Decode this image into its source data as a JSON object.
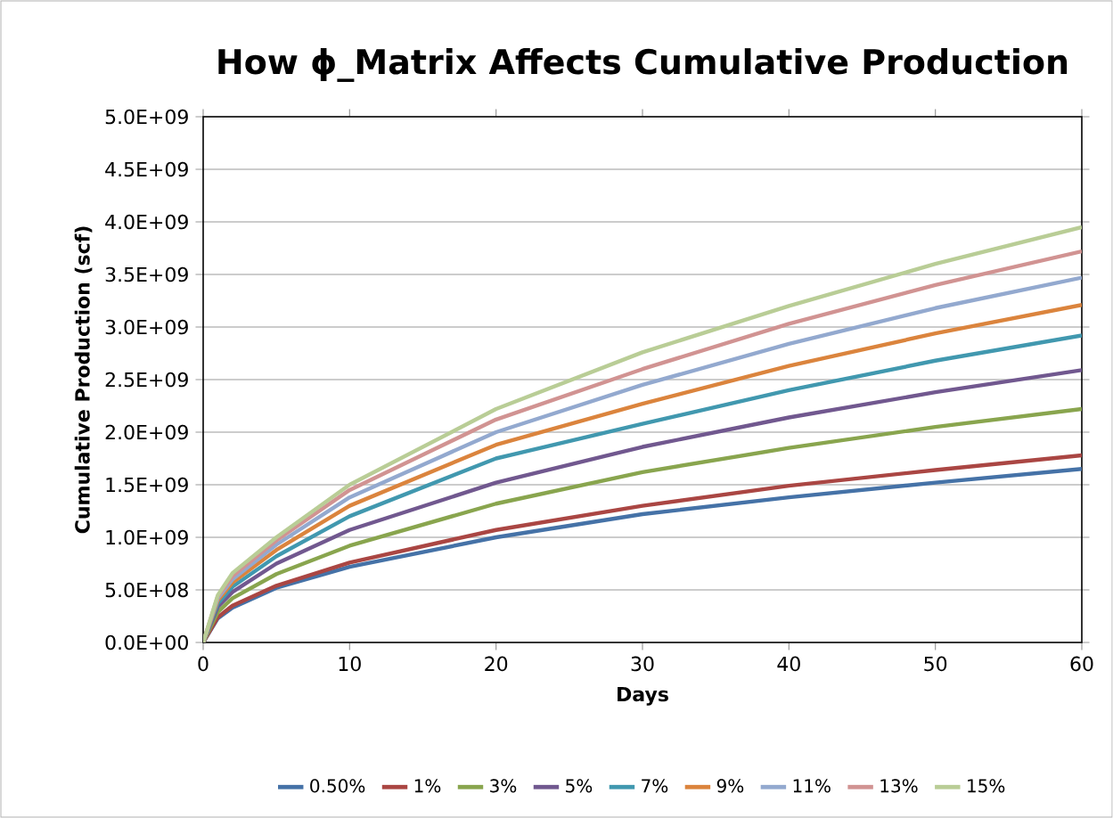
{
  "chart_data": {
    "type": "line",
    "title": "How ϕ_Matrix Affects Cumulative Production",
    "xlabel": "Days",
    "ylabel": "Cumulative Production (scf)",
    "x": [
      0,
      1,
      2,
      5,
      10,
      20,
      30,
      40,
      50,
      60
    ],
    "series": [
      {
        "name": "0.50%",
        "color": "#4572a7",
        "values": [
          0,
          230000000,
          330000000,
          520000000,
          720000000,
          1000000000,
          1220000000,
          1380000000,
          1520000000,
          1650000000
        ]
      },
      {
        "name": "1%",
        "color": "#aa4643",
        "values": [
          0,
          240000000,
          350000000,
          540000000,
          760000000,
          1070000000,
          1300000000,
          1490000000,
          1640000000,
          1780000000
        ]
      },
      {
        "name": "3%",
        "color": "#89a54e",
        "values": [
          0,
          290000000,
          420000000,
          650000000,
          920000000,
          1320000000,
          1620000000,
          1850000000,
          2050000000,
          2220000000
        ]
      },
      {
        "name": "5%",
        "color": "#71588f",
        "values": [
          0,
          340000000,
          480000000,
          750000000,
          1070000000,
          1520000000,
          1860000000,
          2140000000,
          2380000000,
          2590000000
        ]
      },
      {
        "name": "7%",
        "color": "#4198af",
        "values": [
          0,
          370000000,
          530000000,
          820000000,
          1200000000,
          1750000000,
          2080000000,
          2400000000,
          2680000000,
          2920000000
        ]
      },
      {
        "name": "9%",
        "color": "#db843d",
        "values": [
          0,
          400000000,
          570000000,
          880000000,
          1300000000,
          1880000000,
          2270000000,
          2630000000,
          2940000000,
          3210000000
        ]
      },
      {
        "name": "11%",
        "color": "#93a9cf",
        "values": [
          0,
          420000000,
          600000000,
          930000000,
          1380000000,
          2000000000,
          2450000000,
          2840000000,
          3180000000,
          3470000000
        ]
      },
      {
        "name": "13%",
        "color": "#d19392",
        "values": [
          0,
          440000000,
          630000000,
          970000000,
          1450000000,
          2120000000,
          2600000000,
          3030000000,
          3400000000,
          3720000000
        ]
      },
      {
        "name": "15%",
        "color": "#b9cd96",
        "values": [
          0,
          450000000,
          660000000,
          1000000000,
          1500000000,
          2220000000,
          2760000000,
          3200000000,
          3600000000,
          3950000000
        ]
      }
    ],
    "xlim": [
      0,
      60
    ],
    "xticks": [
      0,
      10,
      20,
      30,
      40,
      50,
      60
    ],
    "ylim": [
      0,
      5000000000
    ],
    "yticks": [
      {
        "value": 0,
        "label": "0.0E+00"
      },
      {
        "value": 500000000,
        "label": "5.0E+08"
      },
      {
        "value": 1000000000,
        "label": "1.0E+09"
      },
      {
        "value": 1500000000,
        "label": "1.5E+09"
      },
      {
        "value": 2000000000,
        "label": "2.0E+09"
      },
      {
        "value": 2500000000,
        "label": "2.5E+09"
      },
      {
        "value": 3000000000,
        "label": "3.0E+09"
      },
      {
        "value": 3500000000,
        "label": "3.5E+09"
      },
      {
        "value": 4000000000,
        "label": "4.0E+09"
      },
      {
        "value": 4500000000,
        "label": "4.5E+09"
      },
      {
        "value": 5000000000,
        "label": "5.0E+09"
      }
    ],
    "grid": "y",
    "legend": "bottom"
  }
}
